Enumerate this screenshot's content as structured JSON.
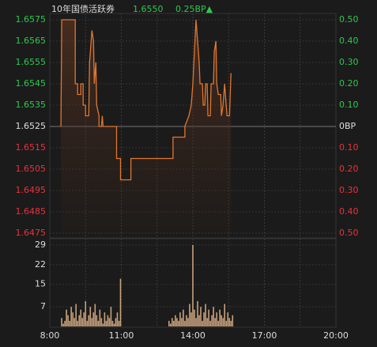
{
  "header": {
    "name": "10年国债活跃券",
    "price": "1.6550",
    "change": "0.25BP▲"
  },
  "chart_data": [
    {
      "type": "line",
      "color": "#e0772f",
      "up_color": "#2ec850",
      "down_color": "#e8323c",
      "flat_color": "#dddddd",
      "xlim": [
        "8:00",
        "20:00"
      ],
      "ylim": [
        1.6475,
        1.6575
      ],
      "yticks": [
        1.6575,
        1.6565,
        1.6555,
        1.6545,
        1.6535,
        1.6525,
        1.6515,
        1.6505,
        1.6495,
        1.6485,
        1.6475
      ],
      "y2lim": [
        -0.5,
        0.5
      ],
      "y2ticks": [
        {
          "value": 0.5,
          "label": "0.50"
        },
        {
          "value": 0.4,
          "label": "0.40"
        },
        {
          "value": 0.3,
          "label": "0.30"
        },
        {
          "value": 0.2,
          "label": "0.20"
        },
        {
          "value": 0.1,
          "label": "0.10"
        },
        {
          "value": 0,
          "label": "0BP"
        },
        {
          "value": -0.1,
          "label": "0.10"
        },
        {
          "value": -0.2,
          "label": "0.20"
        },
        {
          "value": -0.3,
          "label": "0.30"
        },
        {
          "value": -0.4,
          "label": "0.40"
        },
        {
          "value": -0.5,
          "label": "0.50"
        }
      ],
      "x": [
        "8:28",
        "8:30",
        "9:04",
        "9:04",
        "9:10",
        "9:10",
        "9:18",
        "9:18",
        "9:24",
        "9:24",
        "9:30",
        "9:30",
        "9:38",
        "9:40",
        "9:44",
        "9:46",
        "9:50",
        "9:52",
        "9:56",
        "9:58",
        "10:04",
        "10:04",
        "10:10",
        "10:12",
        "10:14",
        "10:48",
        "10:48",
        "10:58",
        "10:58",
        "11:24",
        "11:24",
        "13:10",
        "13:10",
        "13:40",
        "13:40",
        "13:50",
        "13:56",
        "14:00",
        "14:04",
        "14:08",
        "14:12",
        "14:16",
        "14:18",
        "14:24",
        "14:26",
        "14:30",
        "14:32",
        "14:36",
        "14:38",
        "14:44",
        "14:46",
        "14:52",
        "14:54",
        "14:58",
        "15:00",
        "15:04",
        "15:10",
        "15:12",
        "15:16",
        "15:20",
        "15:26",
        "15:32",
        "15:36"
      ],
      "values": [
        1.6525,
        1.6575,
        1.6575,
        1.6545,
        1.6545,
        1.654,
        1.654,
        1.6545,
        1.6545,
        1.6535,
        1.6535,
        1.653,
        1.653,
        1.6555,
        1.6565,
        1.657,
        1.6565,
        1.6545,
        1.6555,
        1.6535,
        1.653,
        1.6525,
        1.6525,
        1.653,
        1.6525,
        1.6525,
        1.651,
        1.651,
        1.65,
        1.65,
        1.651,
        1.651,
        1.652,
        1.652,
        1.6525,
        1.653,
        1.6535,
        1.6545,
        1.656,
        1.6575,
        1.6565,
        1.6555,
        1.6545,
        1.6545,
        1.6535,
        1.6535,
        1.6545,
        1.6545,
        1.653,
        1.653,
        1.6545,
        1.6545,
        1.656,
        1.6565,
        1.6545,
        1.654,
        1.654,
        1.653,
        1.6535,
        1.6545,
        1.653,
        1.653,
        1.655
      ]
    },
    {
      "type": "bar",
      "color": "#c9a27c",
      "xlim": [
        "8:00",
        "20:00"
      ],
      "xticks": [
        "8:00",
        "11:00",
        "14:00",
        "17:00",
        "20:00"
      ],
      "ylim": [
        0,
        29
      ],
      "yticks": [
        29,
        22,
        15,
        7
      ],
      "x": [
        "8:30",
        "8:34",
        "8:38",
        "8:42",
        "8:46",
        "8:50",
        "8:54",
        "8:58",
        "9:02",
        "9:06",
        "9:10",
        "9:14",
        "9:18",
        "9:22",
        "9:26",
        "9:30",
        "9:34",
        "9:38",
        "9:42",
        "9:46",
        "9:50",
        "9:54",
        "9:58",
        "10:02",
        "10:06",
        "10:10",
        "10:14",
        "10:18",
        "10:22",
        "10:26",
        "10:30",
        "10:34",
        "10:38",
        "10:42",
        "10:46",
        "10:50",
        "10:54",
        "10:58",
        "13:00",
        "13:04",
        "13:08",
        "13:12",
        "13:16",
        "13:20",
        "13:24",
        "13:28",
        "13:32",
        "13:36",
        "13:40",
        "13:44",
        "13:48",
        "13:52",
        "13:56",
        "14:00",
        "14:04",
        "14:08",
        "14:12",
        "14:16",
        "14:20",
        "14:24",
        "14:28",
        "14:32",
        "14:36",
        "14:40",
        "14:44",
        "14:48",
        "14:52",
        "14:56",
        "15:00",
        "15:04",
        "15:08",
        "15:12",
        "15:16",
        "15:20",
        "15:24",
        "15:28",
        "15:32",
        "15:36",
        "15:40"
      ],
      "values": [
        3,
        1,
        2,
        6,
        4,
        2,
        7,
        5,
        3,
        8,
        2,
        4,
        6,
        3,
        5,
        9,
        2,
        4,
        7,
        3,
        5,
        8,
        4,
        2,
        6,
        3,
        1,
        5,
        2,
        4,
        3,
        7,
        2,
        1,
        3,
        5,
        2,
        17,
        2,
        1,
        3,
        2,
        4,
        3,
        2,
        5,
        3,
        6,
        2,
        4,
        3,
        8,
        5,
        29,
        6,
        3,
        9,
        4,
        7,
        2,
        5,
        8,
        3,
        6,
        2,
        4,
        7,
        3,
        5,
        2,
        6,
        4,
        3,
        8,
        2,
        5,
        3,
        2,
        4
      ]
    }
  ]
}
